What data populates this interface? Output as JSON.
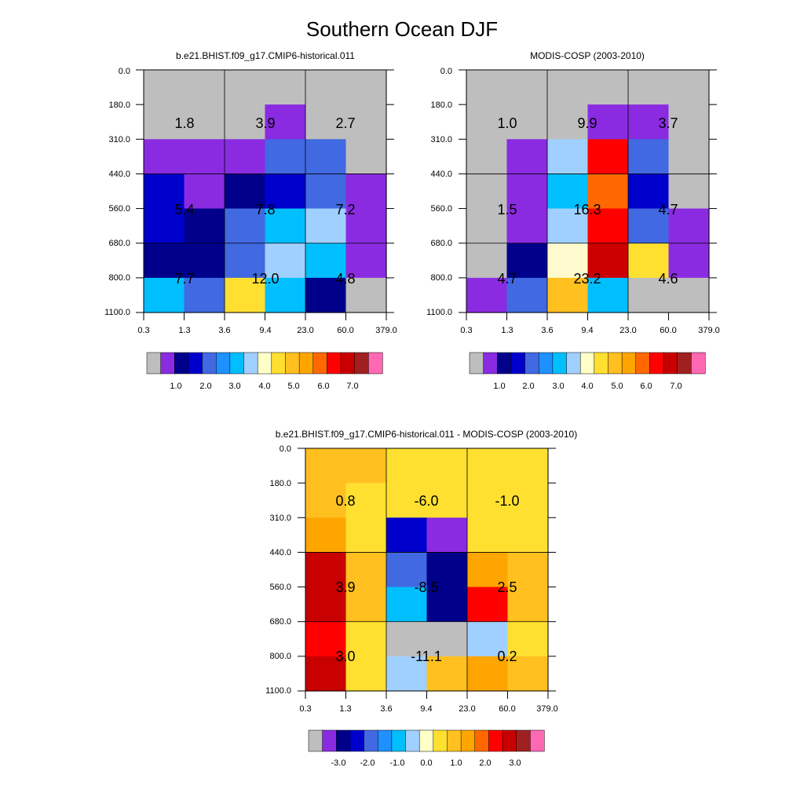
{
  "figure": {
    "title": "Southern Ocean DJF"
  },
  "chart_data": [
    {
      "type": "heatmap",
      "title": "b.e21.BHIST.f09_g17.CMIP6-historical.011",
      "xticks": [
        "0.3",
        "1.3",
        "3.6",
        "9.4",
        "23.0",
        "60.0",
        "379.0"
      ],
      "yticks": [
        "0.0",
        "180.0",
        "310.0",
        "440.0",
        "560.0",
        "680.0",
        "800.0",
        "1100.0"
      ],
      "cell_colors": [
        [
          0,
          0,
          0,
          0,
          0,
          0
        ],
        [
          0,
          0,
          0,
          1,
          0,
          0
        ],
        [
          1,
          1,
          1,
          4,
          4,
          0
        ],
        [
          3,
          1,
          2,
          3,
          4,
          1
        ],
        [
          3,
          2,
          4,
          6,
          7,
          1
        ],
        [
          2,
          2,
          4,
          7,
          6,
          1
        ],
        [
          6,
          4,
          9,
          6,
          2,
          0
        ]
      ],
      "box_values": [
        [
          "1.8",
          "3.9",
          "2.7"
        ],
        [
          "5.4",
          "7.8",
          "7.2"
        ],
        [
          "7.7",
          "12.0",
          "4.8"
        ]
      ],
      "colorbar_labels": [
        "1.0",
        "2.0",
        "3.0",
        "4.0",
        "5.0",
        "6.0",
        "7.0"
      ]
    },
    {
      "type": "heatmap",
      "title": "MODIS-COSP (2003-2010)",
      "xticks": [
        "0.3",
        "1.3",
        "3.6",
        "9.4",
        "23.0",
        "60.0",
        "379.0"
      ],
      "yticks": [
        "0.0",
        "180.0",
        "310.0",
        "440.0",
        "560.0",
        "680.0",
        "800.0",
        "1100.0"
      ],
      "cell_colors": [
        [
          0,
          0,
          0,
          0,
          0,
          0
        ],
        [
          0,
          0,
          0,
          1,
          1,
          0
        ],
        [
          0,
          1,
          7,
          13,
          4,
          0
        ],
        [
          0,
          1,
          6,
          12,
          3,
          0
        ],
        [
          0,
          1,
          7,
          13,
          4,
          1
        ],
        [
          0,
          2,
          17,
          19,
          9,
          1
        ],
        [
          1,
          4,
          10,
          6,
          0,
          0
        ]
      ],
      "box_values": [
        [
          "1.0",
          "9.9",
          "3.7"
        ],
        [
          "1.5",
          "16.3",
          "4.7"
        ],
        [
          "4.7",
          "23.2",
          "4.6"
        ]
      ],
      "colorbar_labels": [
        "1.0",
        "2.0",
        "3.0",
        "4.0",
        "5.0",
        "6.0",
        "7.0"
      ]
    },
    {
      "type": "heatmap",
      "title": "b.e21.BHIST.f09_g17.CMIP6-historical.011 - MODIS-COSP (2003-2010)",
      "xticks": [
        "0.3",
        "1.3",
        "3.6",
        "9.4",
        "23.0",
        "60.0",
        "379.0"
      ],
      "yticks": [
        "0.0",
        "180.0",
        "310.0",
        "440.0",
        "560.0",
        "680.0",
        "800.0",
        "1100.0"
      ],
      "cell_colors": [
        [
          10,
          10,
          9,
          9,
          9,
          9
        ],
        [
          10,
          9,
          9,
          9,
          9,
          9
        ],
        [
          11,
          9,
          3,
          1,
          9,
          9
        ],
        [
          14,
          10,
          4,
          2,
          11,
          10
        ],
        [
          14,
          10,
          6,
          2,
          13,
          10
        ],
        [
          13,
          9,
          0,
          0,
          7,
          9
        ],
        [
          14,
          9,
          7,
          10,
          11,
          10
        ]
      ],
      "box_values": [
        [
          "0.8",
          "-6.0",
          "-1.0"
        ],
        [
          "3.9",
          "-8.5",
          "2.5"
        ],
        [
          "3.0",
          "-11.1",
          "0.2"
        ]
      ],
      "colorbar_labels": [
        "-3.0",
        "-2.0",
        "-1.0",
        "0.0",
        "1.0",
        "2.0",
        "3.0"
      ]
    }
  ],
  "colors": {
    "palette": [
      "#bebebe",
      "#8a2be2",
      "#00008b",
      "#0000cd",
      "#4169e1",
      "#1e90ff",
      "#00bfff",
      "#a0d0ff",
      "#ffffc8",
      "#ffe030",
      "#ffc020",
      "#ffa500",
      "#ff6800",
      "#ff0000",
      "#c80000",
      "#a02020",
      "#ff69b4",
      "#fffacd",
      "#ffff00",
      "#cc0000"
    ],
    "colorbar": [
      "#bebebe",
      "#8a2be2",
      "#00008b",
      "#0000cd",
      "#4169e1",
      "#1e90ff",
      "#00bfff",
      "#a0d0ff",
      "#ffffc8",
      "#ffe030",
      "#ffc020",
      "#ffa500",
      "#ff6800",
      "#ff0000",
      "#c80000",
      "#a02020",
      "#ff69b4"
    ]
  }
}
